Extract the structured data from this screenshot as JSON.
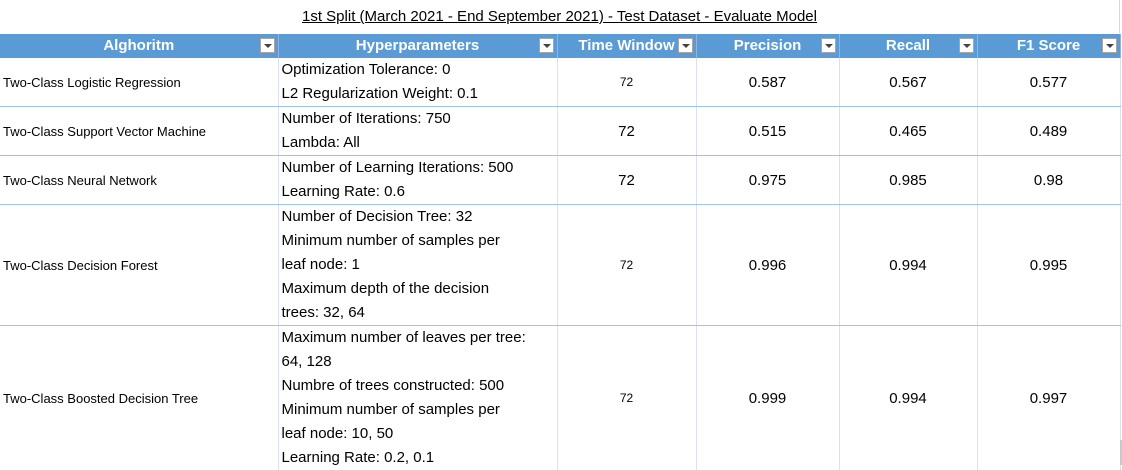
{
  "title": "1st Split (March 2021 - End September 2021) - Test Dataset - Evaluate Model",
  "headers": {
    "algorithm": "Alghoritm",
    "hyperparameters": "Hyperparameters",
    "time_window": "Time Window",
    "precision": "Precision",
    "recall": "Recall",
    "f1": "F1 Score"
  },
  "rows": [
    {
      "algorithm": "Two-Class Logistic Regression",
      "hyper": [
        "Optimization Tolerance: 0",
        "L2 Regularization Weight: 0.1"
      ],
      "time_window": "72",
      "precision": "0.587",
      "recall": "0.567",
      "f1": "0.577"
    },
    {
      "algorithm": "Two-Class Support Vector Machine",
      "hyper": [
        "Number of Iterations: 750",
        "Lambda: All"
      ],
      "time_window": "72",
      "precision": "0.515",
      "recall": "0.465",
      "f1": "0.489"
    },
    {
      "algorithm": "Two-Class Neural Network",
      "hyper": [
        "Number of Learning Iterations: 500",
        "Learning Rate: 0.6"
      ],
      "time_window": "72",
      "precision": "0.975",
      "recall": "0.985",
      "f1": "0.98"
    },
    {
      "algorithm": "Two-Class Decision Forest",
      "hyper": [
        "Number of Decision Tree: 32",
        "Minimum number of samples per",
        "leaf node: 1",
        "Maximum depth of the decision",
        "trees: 32, 64"
      ],
      "time_window": "72",
      "precision": "0.996",
      "recall": "0.994",
      "f1": "0.995"
    },
    {
      "algorithm": "Two-Class Boosted Decision Tree",
      "hyper": [
        "Maximum number of leaves per tree:",
        "64, 128",
        "Numbre of trees constructed: 500",
        "Minimum number of samples per",
        "leaf node: 10, 50",
        "Learning Rate: 0.2, 0.1"
      ],
      "time_window": "72",
      "precision": "0.999",
      "recall": "0.994",
      "f1": "0.997"
    }
  ]
}
